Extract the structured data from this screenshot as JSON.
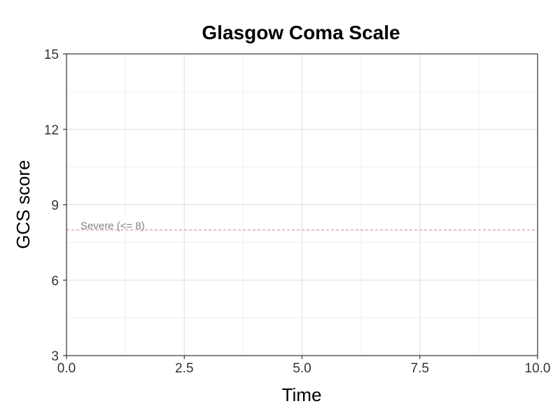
{
  "chart_data": {
    "type": "line",
    "title": "Glasgow Coma Scale",
    "xlabel": "Time",
    "ylabel": "GCS score",
    "xlim": [
      0,
      10
    ],
    "ylim": [
      3,
      15
    ],
    "x_ticks": [
      0,
      2.5,
      5,
      7.5,
      10
    ],
    "x_tick_labels": [
      "0.0",
      "2.5",
      "5.0",
      "7.5",
      "10.0"
    ],
    "y_ticks": [
      3,
      6,
      9,
      12,
      15
    ],
    "y_tick_labels": [
      "3",
      "6",
      "9",
      "12",
      "15"
    ],
    "grid": true,
    "series": [],
    "reference_lines": [
      {
        "y": 8,
        "label": "Severe (<= 8)",
        "style": "dashed",
        "color": "#e07f7f"
      }
    ],
    "colors": {
      "grid_major": "#dedede",
      "grid_minor": "#f0f0f0",
      "panel_border": "#333333",
      "annotation_text": "#808080"
    }
  }
}
